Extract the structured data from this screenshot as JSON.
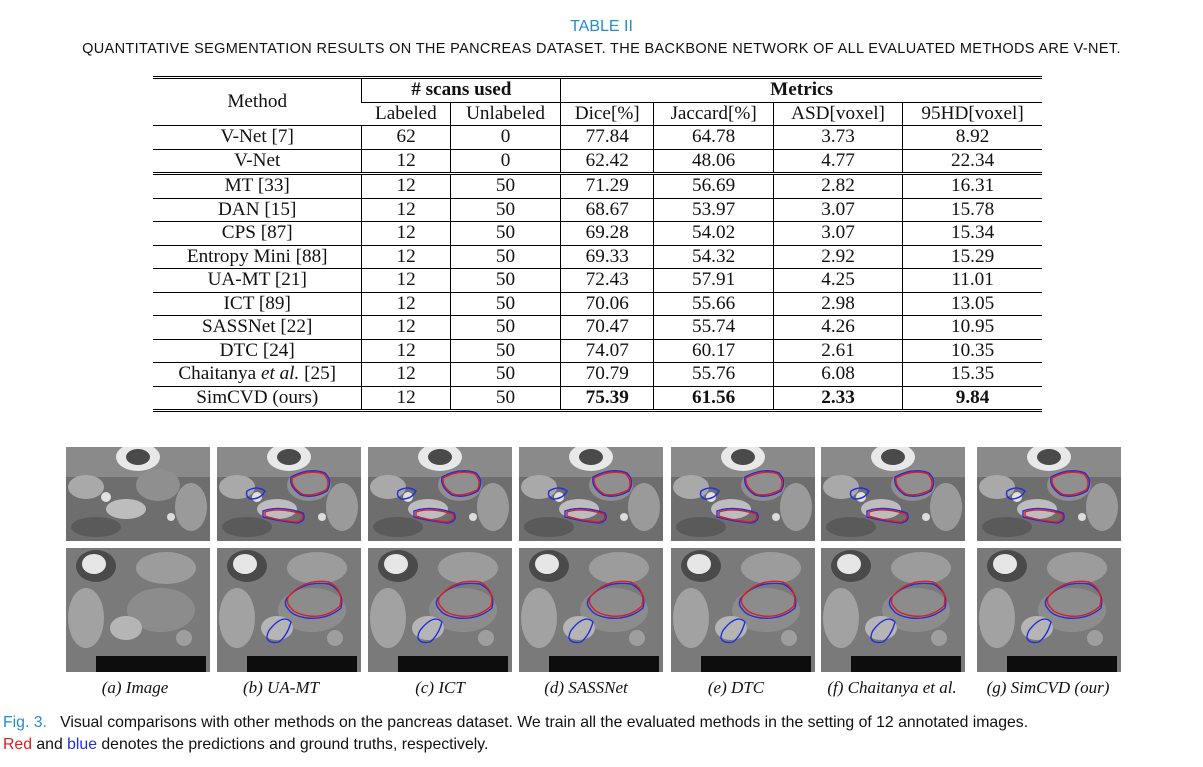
{
  "table": {
    "label": "TABLE II",
    "title": "QUANTITATIVE SEGMENTATION RESULTS ON THE PANCREAS DATASET. THE BACKBONE NETWORK OF ALL EVALUATED METHODS ARE V-NET.",
    "col_method": "Method",
    "group_scans": "# scans used",
    "group_metrics": "Metrics",
    "sub_headers": [
      "Labeled",
      "Unlabeled",
      "Dice[%]",
      "Jaccard[%]",
      "ASD[voxel]",
      "95HD[voxel]"
    ],
    "baseline_rows": [
      {
        "method": "V-Net [7]",
        "labeled": "62",
        "unlabeled": "0",
        "dice": "77.84",
        "jaccard": "64.78",
        "asd": "3.73",
        "hd": "8.92"
      },
      {
        "method": "V-Net",
        "labeled": "12",
        "unlabeled": "0",
        "dice": "62.42",
        "jaccard": "48.06",
        "asd": "4.77",
        "hd": "22.34"
      }
    ],
    "semi_rows": [
      {
        "method": "MT [33]",
        "labeled": "12",
        "unlabeled": "50",
        "dice": "71.29",
        "jaccard": "56.69",
        "asd": "2.82",
        "hd": "16.31"
      },
      {
        "method": "DAN [15]",
        "labeled": "12",
        "unlabeled": "50",
        "dice": "68.67",
        "jaccard": "53.97",
        "asd": "3.07",
        "hd": "15.78"
      },
      {
        "method": "CPS [87]",
        "labeled": "12",
        "unlabeled": "50",
        "dice": "69.28",
        "jaccard": "54.02",
        "asd": "3.07",
        "hd": "15.34"
      },
      {
        "method": "Entropy Mini [88]",
        "labeled": "12",
        "unlabeled": "50",
        "dice": "69.33",
        "jaccard": "54.32",
        "asd": "2.92",
        "hd": "15.29"
      },
      {
        "method": "UA-MT [21]",
        "labeled": "12",
        "unlabeled": "50",
        "dice": "72.43",
        "jaccard": "57.91",
        "asd": "4.25",
        "hd": "11.01"
      },
      {
        "method": "ICT [89]",
        "labeled": "12",
        "unlabeled": "50",
        "dice": "70.06",
        "jaccard": "55.66",
        "asd": "2.98",
        "hd": "13.05"
      },
      {
        "method": "SASSNet [22]",
        "labeled": "12",
        "unlabeled": "50",
        "dice": "70.47",
        "jaccard": "55.74",
        "asd": "4.26",
        "hd": "10.95"
      },
      {
        "method": "DTC [24]",
        "labeled": "12",
        "unlabeled": "50",
        "dice": "74.07",
        "jaccard": "60.17",
        "asd": "2.61",
        "hd": "10.35"
      },
      {
        "method_pre": "Chaitanya ",
        "method_em": "et al.",
        "method_post": " [25]",
        "labeled": "12",
        "unlabeled": "50",
        "dice": "70.79",
        "jaccard": "55.76",
        "asd": "6.08",
        "hd": "15.35"
      },
      {
        "method": "SimCVD (ours)",
        "labeled": "12",
        "unlabeled": "50",
        "dice": "75.39",
        "jaccard": "61.56",
        "asd": "2.33",
        "hd": "9.84"
      }
    ]
  },
  "figure": {
    "subcaptions": [
      "(a) Image",
      "(b) UA-MT",
      "(c) ICT",
      "(d) SASSNet",
      "(e) DTC",
      "(f) Chaitanya et al.",
      "(g) SimCVD (our)"
    ],
    "legend_colors": {
      "prediction": "#e21b1b",
      "ground_truth": "#2230d8"
    },
    "caption_label": "Fig. 3.",
    "caption_text_1": "Visual comparisons with other methods on the pancreas dataset. We train all the evaluated methods in the setting of 12 annotated images.",
    "caption_red": "Red",
    "caption_and": " and ",
    "caption_blue": "blue",
    "caption_text_2": " denotes the predictions and ground truths, respectively."
  }
}
